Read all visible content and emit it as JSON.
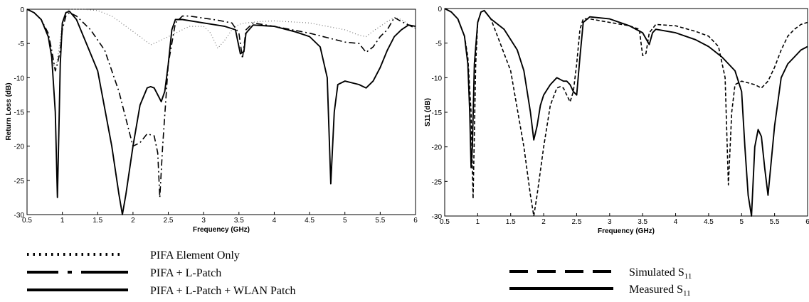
{
  "chart_data": [
    {
      "type": "line",
      "xlabel": "Frequency (GHz)",
      "ylabel": "Return Loss (dB)",
      "xlim": [
        0.5,
        6
      ],
      "ylim": [
        -30,
        0
      ],
      "xticks": [
        "0.5",
        "1",
        "1.5",
        "2",
        "2.5",
        "3",
        "3.5",
        "4",
        "4.5",
        "5",
        "5.5",
        "6"
      ],
      "yticks": [
        "0",
        "-5",
        "-10",
        "-15",
        "-20",
        "-25",
        "-30"
      ],
      "grid": false,
      "legend_position": "below",
      "series": [
        {
          "name": "PIFA Element Only",
          "style": "dotted",
          "x": [
            0.5,
            0.6,
            0.7,
            0.8,
            0.85,
            0.9,
            0.95,
            1.0,
            1.05,
            1.1,
            1.2,
            1.3,
            1.5,
            1.7,
            1.9,
            2.1,
            2.25,
            2.4,
            2.6,
            2.8,
            3.0,
            3.1,
            3.2,
            3.3,
            3.4,
            3.5,
            3.6,
            3.8,
            4.0,
            4.5,
            5.0,
            5.2,
            5.3,
            5.4,
            5.5,
            5.6,
            5.7,
            5.8,
            5.9,
            6.0
          ],
          "y": [
            0,
            -0.5,
            -1.5,
            -4,
            -7,
            -9,
            -6,
            -2,
            -0.5,
            0,
            0,
            0,
            -0.2,
            -1,
            -2.5,
            -4,
            -5.2,
            -4.5,
            -3.5,
            -2.5,
            -2.5,
            -3.5,
            -5.7,
            -4.5,
            -3,
            -2.2,
            -2,
            -1.8,
            -1.7,
            -2,
            -3,
            -3.8,
            -4,
            -3.2,
            -2.5,
            -1.8,
            -1.2,
            -1.5,
            -2.2,
            -2.8
          ]
        },
        {
          "name": "PIFA + L-Patch",
          "style": "dash-dot",
          "x": [
            0.5,
            0.6,
            0.7,
            0.8,
            0.85,
            0.9,
            0.93,
            0.95,
            0.97,
            1.0,
            1.05,
            1.1,
            1.2,
            1.4,
            1.6,
            1.8,
            1.95,
            2.0,
            2.1,
            2.2,
            2.3,
            2.35,
            2.38,
            2.42,
            2.5,
            2.6,
            2.7,
            2.8,
            3.0,
            3.2,
            3.4,
            3.5,
            3.55,
            3.6,
            3.7,
            4.0,
            4.5,
            5.0,
            5.2,
            5.3,
            5.4,
            5.5,
            5.6,
            5.7,
            5.8,
            5.9,
            6.0
          ],
          "y": [
            0,
            -0.5,
            -1.5,
            -3.5,
            -6,
            -9,
            -8,
            -7,
            -6,
            -3,
            -1,
            -0.5,
            -1,
            -3,
            -6,
            -12,
            -18,
            -20,
            -19.5,
            -18.2,
            -18.5,
            -21,
            -27.5,
            -20,
            -8,
            -2,
            -1,
            -1,
            -1.3,
            -1.6,
            -2,
            -3.5,
            -7.2,
            -3,
            -2,
            -2.5,
            -3.5,
            -4.8,
            -5,
            -6.3,
            -5.5,
            -4,
            -3,
            -1.2,
            -1.8,
            -2.3,
            -2.8
          ]
        },
        {
          "name": "PIFA + L-Patch + WLAN Patch",
          "style": "solid",
          "x": [
            0.5,
            0.6,
            0.7,
            0.8,
            0.85,
            0.9,
            0.93,
            0.95,
            0.97,
            1.0,
            1.05,
            1.1,
            1.2,
            1.3,
            1.5,
            1.7,
            1.8,
            1.85,
            1.9,
            2.0,
            2.1,
            2.2,
            2.25,
            2.3,
            2.35,
            2.4,
            2.45,
            2.5,
            2.55,
            2.6,
            2.7,
            3.0,
            3.3,
            3.45,
            3.52,
            3.57,
            3.6,
            3.7,
            4.0,
            4.3,
            4.5,
            4.65,
            4.75,
            4.8,
            4.85,
            4.9,
            5.0,
            5.2,
            5.3,
            5.4,
            5.5,
            5.6,
            5.7,
            5.8,
            5.9,
            6.0
          ],
          "y": [
            0,
            -0.5,
            -1.5,
            -4,
            -7,
            -15,
            -27.5,
            -18,
            -8,
            -2,
            -0.5,
            -0.3,
            -1.5,
            -4,
            -9,
            -20,
            -27,
            -30,
            -27,
            -20,
            -14,
            -11.5,
            -11.3,
            -11.5,
            -12.5,
            -13.5,
            -12,
            -8,
            -3,
            -1.5,
            -1.5,
            -2,
            -2.5,
            -3,
            -6.5,
            -6.2,
            -3.5,
            -2.3,
            -2.5,
            -3.3,
            -4,
            -5.5,
            -10,
            -25.5,
            -15,
            -11,
            -10.5,
            -11,
            -11.5,
            -10.5,
            -8.5,
            -6,
            -4,
            -3,
            -2.3,
            -2.5
          ]
        }
      ]
    },
    {
      "type": "line",
      "xlabel": "Frequency (GHz)",
      "ylabel": "S11 (dB)",
      "xlim": [
        0.5,
        6
      ],
      "ylim": [
        -30,
        0
      ],
      "xticks": [
        "0.5",
        "1",
        "1.5",
        "2",
        "2.5",
        "3",
        "3.5",
        "4",
        "4.5",
        "5",
        "5.5",
        "6"
      ],
      "yticks": [
        "0",
        "-5",
        "-10",
        "-15",
        "-20",
        "-25",
        "-30"
      ],
      "grid": false,
      "legend_position": "below",
      "series": [
        {
          "name": "Simulated S11",
          "style": "dashed",
          "x": [
            0.5,
            0.6,
            0.7,
            0.8,
            0.85,
            0.9,
            0.93,
            0.95,
            0.97,
            1.0,
            1.05,
            1.1,
            1.2,
            1.3,
            1.5,
            1.7,
            1.8,
            1.85,
            1.9,
            2.0,
            2.1,
            2.2,
            2.25,
            2.3,
            2.35,
            2.4,
            2.45,
            2.5,
            2.55,
            2.6,
            2.7,
            3.0,
            3.3,
            3.45,
            3.5,
            3.55,
            3.6,
            3.7,
            4.0,
            4.3,
            4.5,
            4.65,
            4.75,
            4.8,
            4.85,
            4.9,
            5.0,
            5.2,
            5.3,
            5.4,
            5.5,
            5.6,
            5.7,
            5.8,
            5.9,
            6.0
          ],
          "y": [
            0,
            -0.5,
            -1.5,
            -4,
            -7,
            -15,
            -27.5,
            -18,
            -8,
            -2,
            -0.5,
            -0.3,
            -1.5,
            -4,
            -9,
            -20,
            -27,
            -30,
            -27,
            -20,
            -14,
            -11.5,
            -11.3,
            -11.5,
            -12.5,
            -13.5,
            -12,
            -8,
            -3,
            -1.5,
            -1.5,
            -2,
            -2.5,
            -3,
            -6.8,
            -6.5,
            -3.5,
            -2.3,
            -2.5,
            -3.3,
            -4,
            -5.5,
            -10,
            -25.5,
            -15,
            -11,
            -10.5,
            -11,
            -11.5,
            -10.5,
            -8.5,
            -6,
            -4,
            -3,
            -2.3,
            -2
          ]
        },
        {
          "name": "Measured S11",
          "style": "solid",
          "x": [
            0.5,
            0.6,
            0.7,
            0.8,
            0.85,
            0.88,
            0.9,
            0.92,
            0.95,
            1.0,
            1.05,
            1.1,
            1.2,
            1.4,
            1.6,
            1.7,
            1.8,
            1.85,
            1.9,
            1.95,
            2.0,
            2.1,
            2.2,
            2.3,
            2.35,
            2.4,
            2.45,
            2.5,
            2.55,
            2.6,
            2.7,
            3.0,
            3.3,
            3.5,
            3.6,
            3.65,
            3.7,
            4.0,
            4.3,
            4.5,
            4.7,
            4.9,
            5.0,
            5.05,
            5.1,
            5.15,
            5.2,
            5.25,
            5.3,
            5.35,
            5.4,
            5.5,
            5.6,
            5.7,
            5.8,
            5.9,
            6.0
          ],
          "y": [
            0,
            -0.5,
            -1.5,
            -4,
            -8,
            -15,
            -23,
            -20,
            -8,
            -2,
            -0.5,
            -0.3,
            -1.5,
            -3,
            -6,
            -9,
            -15,
            -19,
            -17,
            -14,
            -12.5,
            -11,
            -10,
            -10.5,
            -10.5,
            -11,
            -12,
            -12.5,
            -7,
            -2,
            -1.2,
            -1.5,
            -2.5,
            -3.5,
            -5.2,
            -3.5,
            -3,
            -3.5,
            -4.5,
            -5.5,
            -7,
            -9,
            -12,
            -20,
            -27,
            -30,
            -20,
            -17.5,
            -18.5,
            -23,
            -27,
            -17,
            -10,
            -8,
            -7,
            -6,
            -5.5
          ]
        }
      ]
    }
  ],
  "legends": {
    "left": [
      {
        "label": "PIFA Element Only",
        "style": "dotted"
      },
      {
        "label": "PIFA + L-Patch",
        "style": "dash-dot"
      },
      {
        "label": "PIFA + L-Patch + WLAN Patch",
        "style": "solid"
      }
    ],
    "right": [
      {
        "label": "Simulated S",
        "sub": "11",
        "style": "dashed"
      },
      {
        "label": "Measured S",
        "sub": "11",
        "style": "solid"
      }
    ]
  }
}
